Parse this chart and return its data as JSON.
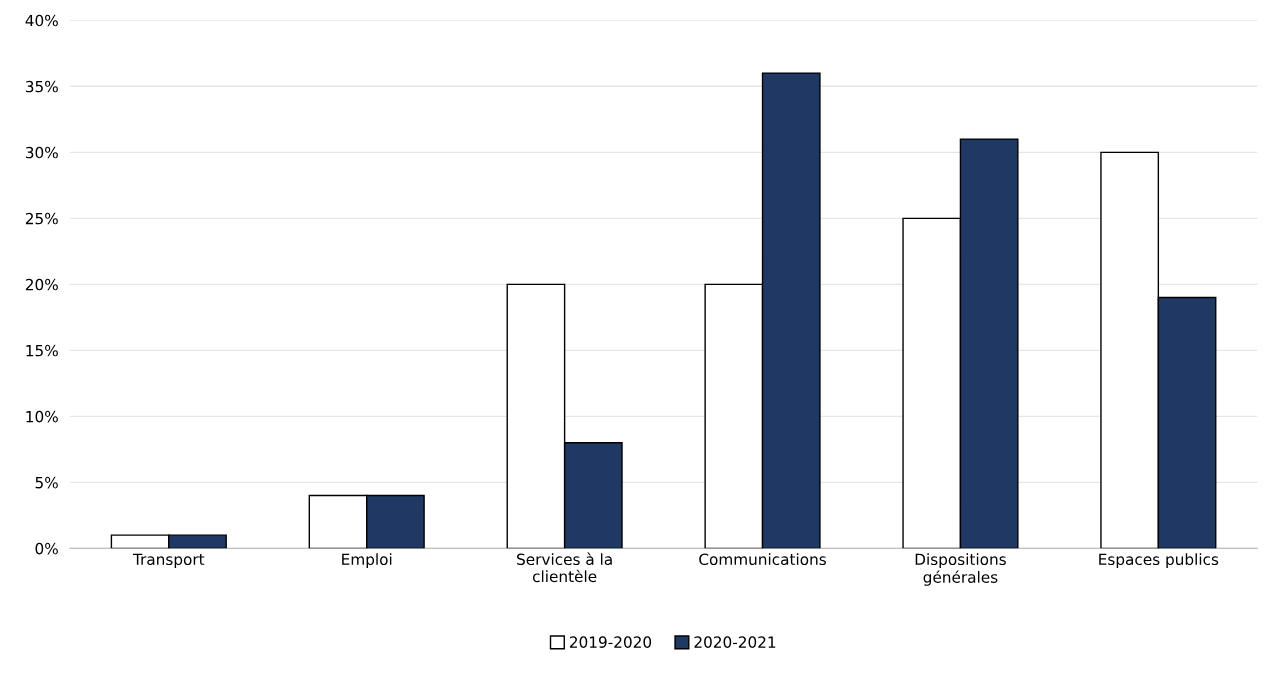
{
  "chart_data": {
    "type": "bar",
    "categories": [
      "Transport",
      "Emploi",
      "Services à la\nclientèle",
      "Communications",
      "Dispositions\ngénérales",
      "Espaces publics"
    ],
    "series": [
      {
        "name": "2019-2020",
        "color": "#ffffff",
        "values": [
          1,
          4,
          20,
          20,
          25,
          30
        ]
      },
      {
        "name": "2020-2021",
        "color": "#1f3864",
        "values": [
          1,
          4,
          8,
          36,
          31,
          19
        ]
      }
    ],
    "ylim": [
      0,
      40
    ],
    "yticks": [
      {
        "value": 0,
        "label": "0%"
      },
      {
        "value": 5,
        "label": "5%"
      },
      {
        "value": 10,
        "label": "10%"
      },
      {
        "value": 15,
        "label": "15%"
      },
      {
        "value": 20,
        "label": "20%"
      },
      {
        "value": 25,
        "label": "25%"
      },
      {
        "value": 30,
        "label": "30%"
      },
      {
        "value": 35,
        "label": "35%"
      },
      {
        "value": 40,
        "label": "40%"
      }
    ],
    "grid": "y",
    "legend": "bottom"
  }
}
